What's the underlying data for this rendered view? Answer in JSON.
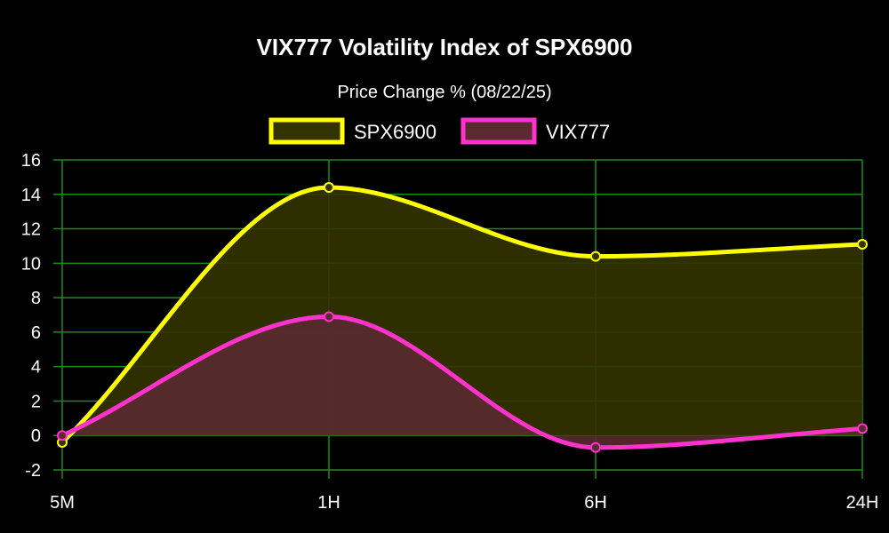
{
  "chart_data": {
    "type": "line",
    "title": "VIX777 Volatility Index of SPX6900",
    "subtitle": "Price Change % (08/22/25)",
    "categories": [
      "5M",
      "1H",
      "6H",
      "24H"
    ],
    "series": [
      {
        "name": "SPX6900",
        "values": [
          -0.4,
          14.4,
          10.4,
          11.1
        ],
        "color": "#ffff00",
        "fill": "#333300"
      },
      {
        "name": "VIX777",
        "values": [
          0.0,
          6.9,
          -0.7,
          0.4
        ],
        "color": "#ff33cc",
        "fill": "#5a2a30"
      }
    ],
    "ylim": [
      -2,
      16
    ],
    "yticks": [
      -2,
      0,
      2,
      4,
      6,
      8,
      10,
      12,
      14,
      16
    ],
    "grid": true,
    "grid_color": "#1a8c1a",
    "legend_position": "top-center",
    "smooth": true,
    "area_fill": true
  }
}
